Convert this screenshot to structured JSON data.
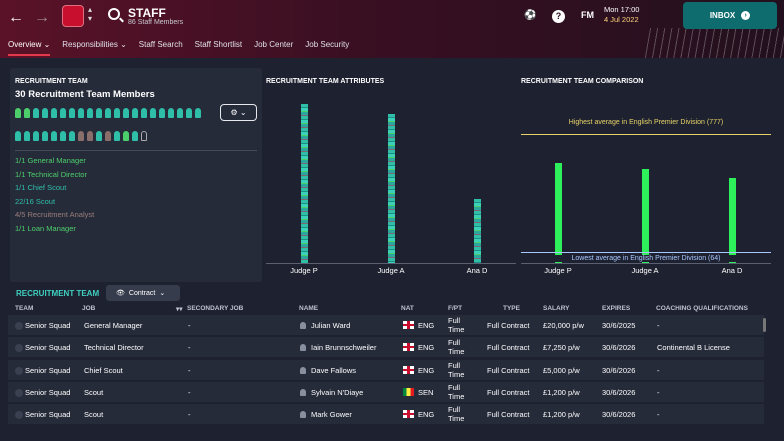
{
  "header": {
    "title": "STAFF",
    "subtitle": "86 Staff Members",
    "date_time": "Mon 17:00",
    "date": "4 Jul 2022",
    "inbox_label": "INBOX",
    "fm_label": "FM"
  },
  "tabs": [
    {
      "label": "Overview ⌄"
    },
    {
      "label": "Responsibilities ⌄"
    },
    {
      "label": "Staff Search"
    },
    {
      "label": "Staff Shortlist"
    },
    {
      "label": "Job Center"
    },
    {
      "label": "Job Security"
    }
  ],
  "recruitment_team": {
    "section_title": "RECRUITMENT TEAM",
    "members_title": "30 Recruitment Team Members",
    "roles": [
      {
        "label": "1/1 General Manager",
        "color": "#4ccf6a"
      },
      {
        "label": "1/1 Technical Director",
        "color": "#4ccf6a"
      },
      {
        "label": "1/1 Chief Scout",
        "color": "#2fbfa8"
      },
      {
        "label": "22/16 Scout",
        "color": "#2fbfa8"
      },
      {
        "label": "4/5 Recruitment Analyst",
        "color": "#9a7e7a"
      },
      {
        "label": "1/1 Loan Manager",
        "color": "#4ccf6a"
      }
    ]
  },
  "attributes_chart": {
    "title": "RECRUITMENT TEAM ATTRIBUTES"
  },
  "comparison_chart": {
    "title": "RECRUITMENT TEAM COMPARISON",
    "highest_label": "Highest average in English Premier Division (777)",
    "lowest_label": "Lowest average in English Premier Division (64)"
  },
  "chart_data": [
    {
      "type": "bar",
      "title": "RECRUITMENT TEAM ATTRIBUTES",
      "categories": [
        "Judge P",
        "Judge A",
        "Ana D"
      ],
      "values": [
        560,
        525,
        225
      ],
      "ylim": [
        0,
        580
      ]
    },
    {
      "type": "bar",
      "title": "RECRUITMENT TEAM COMPARISON",
      "categories": [
        "Judge P",
        "Judge A",
        "Ana D"
      ],
      "values": [
        600,
        565,
        510
      ],
      "ylim": [
        0,
        980
      ],
      "reference_lines": [
        {
          "label": "Highest average in English Premier Division (777)",
          "value": 777
        },
        {
          "label": "Lowest average in English Premier Division (64)",
          "value": 64
        }
      ]
    }
  ],
  "table": {
    "title": "RECRUITMENT TEAM",
    "filter_label": "Contract",
    "columns": [
      "TEAM",
      "JOB",
      "SECONDARY JOB",
      "NAME",
      "NAT",
      "F/PT",
      "TYPE",
      "SALARY",
      "EXPIRES",
      "COACHING QUALIFICATIONS"
    ],
    "rows": [
      {
        "team": "Senior Squad",
        "job": "General Manager",
        "secondary": "-",
        "name": "Julian Ward",
        "nat": "ENG",
        "fpt1": "Full",
        "fpt2": "Time",
        "type": "Full Contract",
        "salary": "£20,000 p/w",
        "expires": "30/6/2025",
        "qual": "-"
      },
      {
        "team": "Senior Squad",
        "job": "Technical Director",
        "secondary": "-",
        "name": "Iain Brunnschweiler",
        "nat": "ENG",
        "fpt1": "Full",
        "fpt2": "Time",
        "type": "Full Contract",
        "salary": "£7,250 p/w",
        "expires": "30/6/2026",
        "qual": "Continental B License"
      },
      {
        "team": "Senior Squad",
        "job": "Chief Scout",
        "secondary": "-",
        "name": "Dave Fallows",
        "nat": "ENG",
        "fpt1": "Full",
        "fpt2": "Time",
        "type": "Full Contract",
        "salary": "£5,000 p/w",
        "expires": "30/6/2026",
        "qual": "-"
      },
      {
        "team": "Senior Squad",
        "job": "Scout",
        "secondary": "-",
        "name": "Sylvain N'Diaye",
        "nat": "SEN",
        "fpt1": "Full",
        "fpt2": "Time",
        "type": "Full Contract",
        "salary": "£1,200 p/w",
        "expires": "30/6/2026",
        "qual": "-"
      },
      {
        "team": "Senior Squad",
        "job": "Scout",
        "secondary": "-",
        "name": "Mark Gower",
        "nat": "ENG",
        "fpt1": "Full",
        "fpt2": "Time",
        "type": "Full Contract",
        "salary": "£1,200 p/w",
        "expires": "30/6/2026",
        "qual": "-"
      }
    ]
  }
}
